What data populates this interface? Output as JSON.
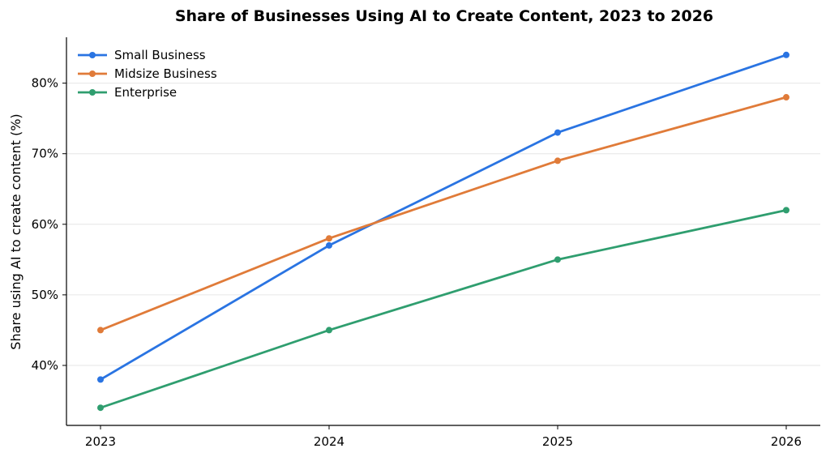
{
  "chart_data": {
    "type": "line",
    "title": "Share of Businesses Using AI to Create Content, 2023 to 2026",
    "xlabel": "",
    "ylabel": "Share using AI to create content (%)",
    "x": [
      "2023",
      "2024",
      "2025",
      "2026"
    ],
    "ylim": [
      31.5,
      86.5
    ],
    "yticks": [
      40,
      50,
      60,
      70,
      80
    ],
    "ytick_labels": [
      "40%",
      "50%",
      "60%",
      "70%",
      "80%"
    ],
    "grid": "horizontal",
    "legend_position": "top-left",
    "series": [
      {
        "name": "Small Business",
        "values": [
          38,
          57,
          73,
          84
        ],
        "color": "#2a74e2"
      },
      {
        "name": "Midsize Business",
        "values": [
          45,
          58,
          69,
          78
        ],
        "color": "#e07b39"
      },
      {
        "name": "Enterprise",
        "values": [
          34,
          45,
          55,
          62
        ],
        "color": "#2f9e6f"
      }
    ]
  }
}
